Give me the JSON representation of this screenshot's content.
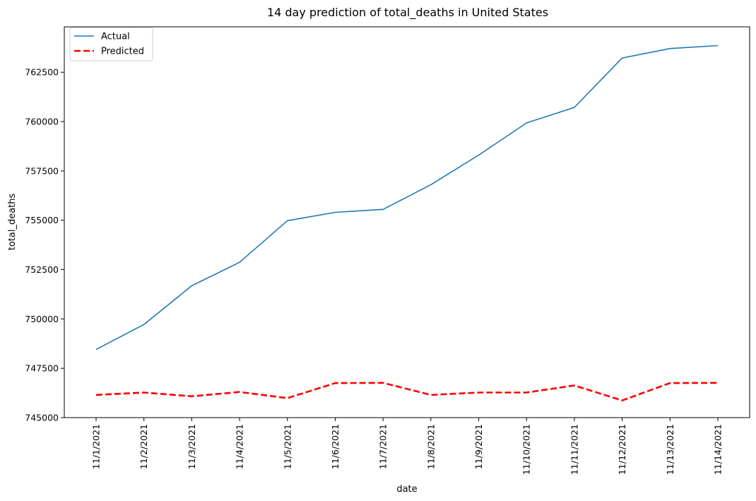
{
  "chart_data": {
    "type": "line",
    "title": "14 day prediction of total_deaths in United States",
    "xlabel": "date",
    "ylabel": "total_deaths",
    "categories": [
      "11/1/2021",
      "11/2/2021",
      "11/3/2021",
      "11/4/2021",
      "11/5/2021",
      "11/6/2021",
      "11/7/2021",
      "11/8/2021",
      "11/9/2021",
      "11/10/2021",
      "11/11/2021",
      "11/12/2021",
      "11/13/2021",
      "11/14/2021"
    ],
    "yticks": [
      745000,
      747500,
      750000,
      752500,
      755000,
      757500,
      760000,
      762500
    ],
    "ylim": [
      745000,
      764800
    ],
    "grid": false,
    "legend_position": "top-left",
    "series": [
      {
        "name": "Actual",
        "color": "#1f77b4",
        "style": "solid",
        "values": [
          748450,
          749720,
          751680,
          752870,
          754980,
          755400,
          755550,
          756800,
          758300,
          759930,
          760720,
          763220,
          763700,
          763850
        ]
      },
      {
        "name": "Predicted",
        "color": "#ff0000",
        "style": "dashed",
        "values": [
          746150,
          746270,
          746080,
          746300,
          745990,
          746750,
          746760,
          746150,
          746270,
          746270,
          746630,
          745870,
          746750,
          746760
        ]
      }
    ]
  }
}
